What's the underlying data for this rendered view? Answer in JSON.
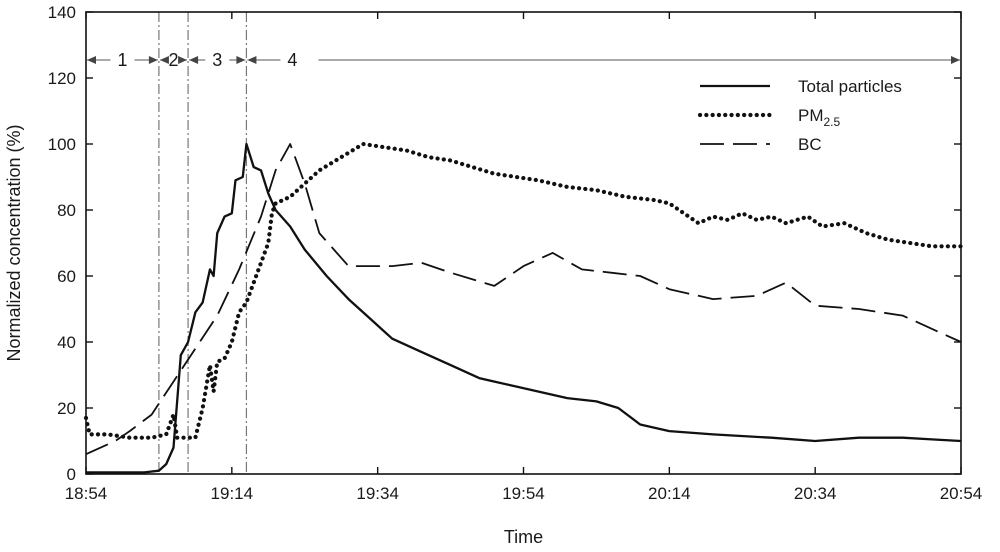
{
  "chart_data": {
    "type": "line",
    "title": "",
    "xlabel": "Time",
    "ylabel": "Normalized concentration (%)",
    "xlim": [
      "18:54",
      "20:54"
    ],
    "ylim": [
      0,
      140
    ],
    "x_ticks": [
      "18:54",
      "19:14",
      "19:34",
      "19:54",
      "20:14",
      "20:34",
      "20:54"
    ],
    "y_ticks": [
      "0",
      "20",
      "40",
      "60",
      "80",
      "100",
      "120",
      "140"
    ],
    "grid": false,
    "legend_position": "top-right",
    "phases": [
      {
        "label": "1",
        "start": "18:54",
        "end": "19:04"
      },
      {
        "label": "2",
        "start": "19:04",
        "end": "19:08"
      },
      {
        "label": "3",
        "start": "19:08",
        "end": "19:16"
      },
      {
        "label": "4",
        "start": "19:16",
        "end": "20:54"
      }
    ],
    "phase_boundaries": [
      "19:04",
      "19:08",
      "19:16"
    ],
    "series": [
      {
        "name": "Total particles",
        "style": "solid",
        "points": [
          [
            "18:54",
            0.5
          ],
          [
            "18:58",
            0.5
          ],
          [
            "19:02",
            0.5
          ],
          [
            "19:04",
            1
          ],
          [
            "19:05",
            3
          ],
          [
            "19:06",
            8
          ],
          [
            "19:07",
            36
          ],
          [
            "19:08",
            40
          ],
          [
            "19:09",
            49
          ],
          [
            "19:10",
            52
          ],
          [
            "19:11",
            62
          ],
          [
            "19:11:30",
            60
          ],
          [
            "19:12",
            73
          ],
          [
            "19:13",
            78
          ],
          [
            "19:14",
            79
          ],
          [
            "19:14:30",
            89
          ],
          [
            "19:15:30",
            90
          ],
          [
            "19:16",
            100
          ],
          [
            "19:17",
            93
          ],
          [
            "19:18",
            92
          ],
          [
            "19:19",
            85
          ],
          [
            "19:20",
            80
          ],
          [
            "19:22",
            75
          ],
          [
            "19:24",
            68
          ],
          [
            "19:27",
            60
          ],
          [
            "19:30",
            53
          ],
          [
            "19:33",
            47
          ],
          [
            "19:36",
            41
          ],
          [
            "19:40",
            37
          ],
          [
            "19:44",
            33
          ],
          [
            "19:48",
            29
          ],
          [
            "19:52",
            27
          ],
          [
            "19:56",
            25
          ],
          [
            "20:00",
            23
          ],
          [
            "20:04",
            22
          ],
          [
            "20:07",
            20
          ],
          [
            "20:10",
            15
          ],
          [
            "20:14",
            13
          ],
          [
            "20:20",
            12
          ],
          [
            "20:28",
            11
          ],
          [
            "20:34",
            10
          ],
          [
            "20:40",
            11
          ],
          [
            "20:46",
            11
          ],
          [
            "20:50",
            10.5
          ],
          [
            "20:54",
            10
          ]
        ]
      },
      {
        "name": "PM2.5",
        "legend_main": "PM",
        "legend_sub": "2.5",
        "style": "dotted",
        "points": [
          [
            "18:54",
            17
          ],
          [
            "18:54:30",
            12
          ],
          [
            "18:57",
            12
          ],
          [
            "19:00",
            11
          ],
          [
            "19:03",
            11
          ],
          [
            "19:05",
            12
          ],
          [
            "19:06",
            18
          ],
          [
            "19:06:30",
            11
          ],
          [
            "19:09",
            11
          ],
          [
            "19:10",
            20
          ],
          [
            "19:11",
            33
          ],
          [
            "19:11:30",
            25
          ],
          [
            "19:12",
            34
          ],
          [
            "19:13",
            35
          ],
          [
            "19:14",
            40
          ],
          [
            "19:15",
            49
          ],
          [
            "19:16",
            52
          ],
          [
            "19:17",
            58
          ],
          [
            "19:18",
            64
          ],
          [
            "19:19",
            70
          ],
          [
            "19:19:30",
            79
          ],
          [
            "19:20",
            82
          ],
          [
            "19:22",
            84
          ],
          [
            "19:24",
            88
          ],
          [
            "19:26",
            92
          ],
          [
            "19:29",
            96
          ],
          [
            "19:32",
            100
          ],
          [
            "19:35",
            99
          ],
          [
            "19:38",
            98
          ],
          [
            "19:41",
            96
          ],
          [
            "19:44",
            95
          ],
          [
            "19:47",
            93
          ],
          [
            "19:50",
            91
          ],
          [
            "19:53",
            90
          ],
          [
            "19:56",
            89
          ],
          [
            "20:00",
            87
          ],
          [
            "20:04",
            86
          ],
          [
            "20:08",
            84
          ],
          [
            "20:12",
            83
          ],
          [
            "20:14",
            82
          ],
          [
            "20:16",
            79
          ],
          [
            "20:18",
            76
          ],
          [
            "20:20",
            78
          ],
          [
            "20:22",
            77
          ],
          [
            "20:24",
            79
          ],
          [
            "20:26",
            77
          ],
          [
            "20:28",
            78
          ],
          [
            "20:30",
            76
          ],
          [
            "20:33",
            78
          ],
          [
            "20:35",
            75
          ],
          [
            "20:38",
            76
          ],
          [
            "20:41",
            73
          ],
          [
            "20:44",
            71
          ],
          [
            "20:47",
            70
          ],
          [
            "20:50",
            69
          ],
          [
            "20:54",
            69
          ]
        ]
      },
      {
        "name": "BC",
        "style": "dashed",
        "points": [
          [
            "18:54",
            6
          ],
          [
            "18:58",
            10
          ],
          [
            "19:00",
            13
          ],
          [
            "19:03",
            18
          ],
          [
            "19:06",
            28
          ],
          [
            "19:09",
            38
          ],
          [
            "19:12",
            48
          ],
          [
            "19:15",
            62
          ],
          [
            "19:18",
            78
          ],
          [
            "19:20",
            92
          ],
          [
            "19:22",
            100
          ],
          [
            "19:24",
            88
          ],
          [
            "19:26",
            73
          ],
          [
            "19:28",
            68
          ],
          [
            "19:30",
            63
          ],
          [
            "19:36",
            63
          ],
          [
            "19:40",
            64
          ],
          [
            "19:44",
            61
          ],
          [
            "19:50",
            57
          ],
          [
            "19:54",
            63
          ],
          [
            "19:58",
            67
          ],
          [
            "20:02",
            62
          ],
          [
            "20:06",
            61
          ],
          [
            "20:10",
            60
          ],
          [
            "20:14",
            56
          ],
          [
            "20:20",
            53
          ],
          [
            "20:26",
            54
          ],
          [
            "20:30",
            58
          ],
          [
            "20:34",
            51
          ],
          [
            "20:40",
            50
          ],
          [
            "20:46",
            48
          ],
          [
            "20:52",
            42
          ],
          [
            "20:54",
            40
          ]
        ]
      }
    ]
  }
}
